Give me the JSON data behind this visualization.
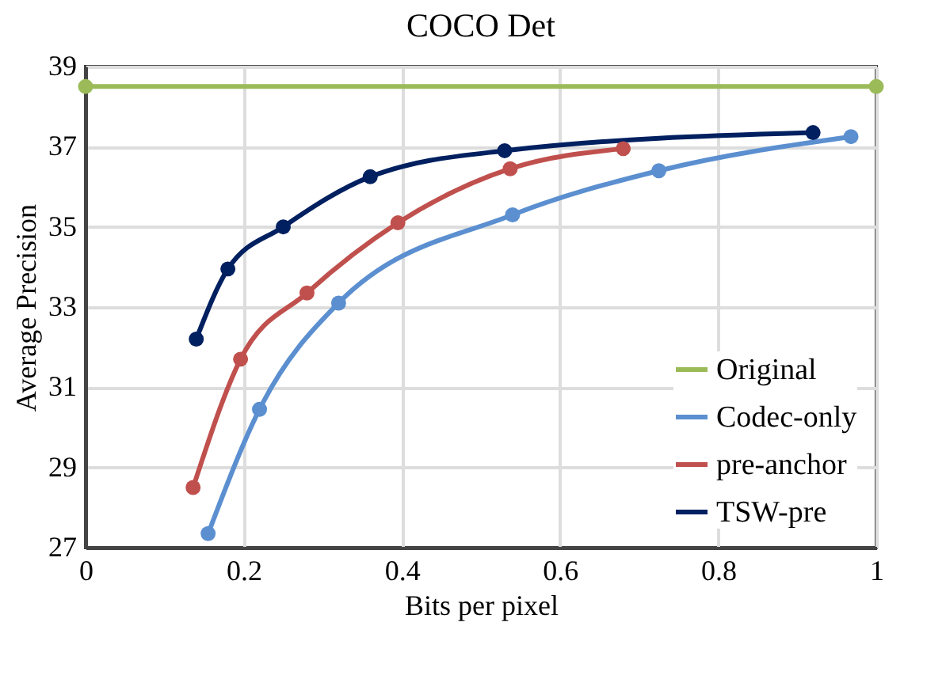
{
  "chart_data": {
    "type": "line",
    "title": "COCO Det",
    "xlabel": "Bits per pixel",
    "ylabel": "Average Precision",
    "xlim": [
      0,
      1
    ],
    "xticks": [
      0,
      0.2,
      0.4,
      0.6,
      0.8,
      1
    ],
    "ylim": [
      27,
      39
    ],
    "yticks": [
      27,
      29,
      31,
      33,
      35,
      37,
      39
    ],
    "grid": true,
    "legend": "bottom right",
    "marker": "circle",
    "line_style": "solid",
    "series": [
      {
        "name": "Original",
        "color": "#9bbb59",
        "x": [
          0,
          1
        ],
        "values": [
          38.5,
          38.5
        ]
      },
      {
        "name": "Codec-only",
        "color": "#5b8fd0",
        "x": [
          0.155,
          0.22,
          0.32,
          0.54,
          0.725,
          0.968
        ],
        "values": [
          27.35,
          30.45,
          33.1,
          35.3,
          36.4,
          37.25
        ]
      },
      {
        "name": "pre-anchor",
        "color": "#c0504d",
        "x": [
          0.136,
          0.196,
          0.28,
          0.395,
          0.537,
          0.68
        ],
        "values": [
          28.5,
          31.7,
          33.35,
          35.1,
          36.45,
          36.95
        ]
      },
      {
        "name": "TSW-pre",
        "color": "#002060",
        "x": [
          0.14,
          0.18,
          0.25,
          0.36,
          0.53,
          0.92
        ],
        "values": [
          32.2,
          33.95,
          35.0,
          36.25,
          36.9,
          37.35
        ]
      }
    ]
  }
}
